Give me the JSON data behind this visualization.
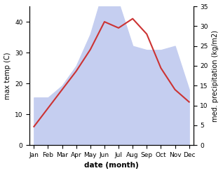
{
  "months": [
    "Jan",
    "Feb",
    "Mar",
    "Apr",
    "May",
    "Jun",
    "Jul",
    "Aug",
    "Sep",
    "Oct",
    "Nov",
    "Dec"
  ],
  "temp": [
    6,
    12,
    18,
    24,
    31,
    40,
    38,
    41,
    36,
    25,
    18,
    14
  ],
  "precip_kg": [
    12,
    12,
    15,
    20,
    28,
    40,
    36,
    25,
    24,
    24,
    25,
    14
  ],
  "temp_color": "#cc3333",
  "precip_color_fill": "#c5cef0",
  "left_ylabel": "max temp (C)",
  "right_ylabel": "med. precipitation (kg/m2)",
  "xlabel": "date (month)",
  "left_ylim": [
    0,
    45
  ],
  "right_ylim": [
    0,
    35
  ],
  "left_yticks": [
    0,
    10,
    20,
    30,
    40
  ],
  "right_yticks": [
    0,
    5,
    10,
    15,
    20,
    25,
    30,
    35
  ],
  "bg_color": "#ffffff"
}
